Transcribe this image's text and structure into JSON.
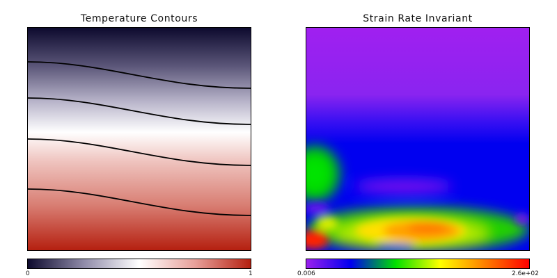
{
  "chart_data": [
    {
      "type": "heatmap",
      "title": "Temperature Contours",
      "field": "temperature",
      "colormap": "navy-white-red",
      "colormap_stops": [
        "#0d0a2e",
        "#8f8aa8",
        "#ffffff",
        "#e8a09a",
        "#b52010"
      ],
      "colorbar": {
        "min_label": "0",
        "max_label": "1",
        "min": 0,
        "max": 1
      },
      "contour_levels": [
        0.2,
        0.4,
        0.6,
        0.8
      ],
      "grid": false
    },
    {
      "type": "heatmap",
      "title": "Strain Rate Invariant",
      "field": "strain_rate_invariant",
      "colormap": "rainbow",
      "colormap_stops": [
        "#9a20ee",
        "#0000f0",
        "#00e000",
        "#ffff00",
        "#ff8000",
        "#ff0000"
      ],
      "colorbar": {
        "min_label": "0.006",
        "max_label": "2.6e+02",
        "min": 0.006,
        "max": 260
      },
      "grid": false
    }
  ]
}
